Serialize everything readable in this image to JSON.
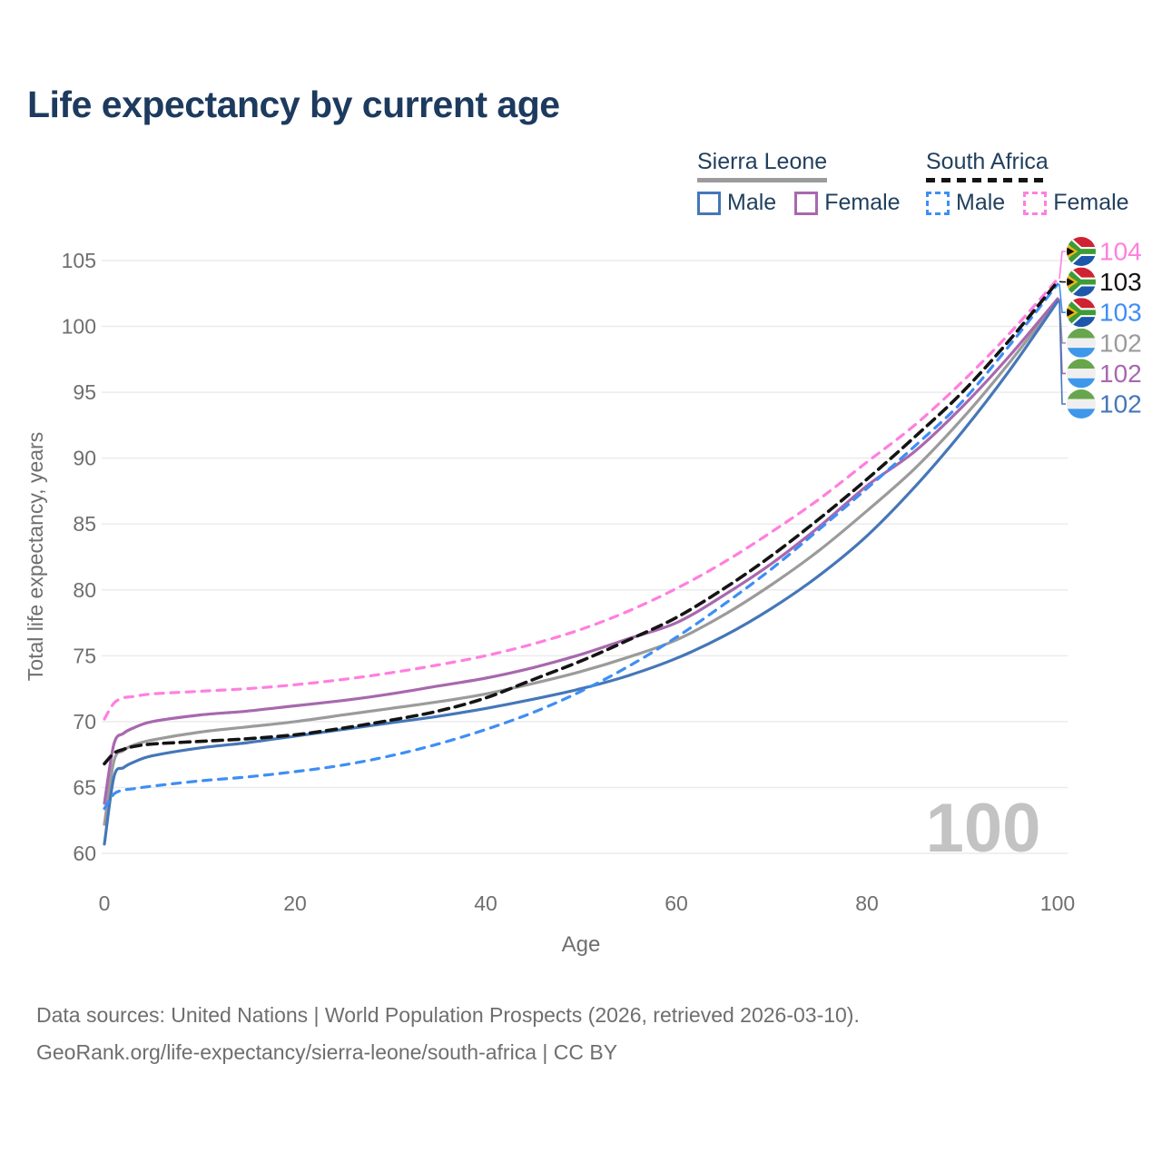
{
  "title": "Life expectancy by current age",
  "watermark_age": "100",
  "legend": {
    "groups": [
      {
        "label": "Sierra Leone",
        "style": "solid",
        "underline_color": "#9b9b9b",
        "items": [
          {
            "label": "Male",
            "color": "#4577b8"
          },
          {
            "label": "Female",
            "color": "#a868ae"
          }
        ]
      },
      {
        "label": "South Africa",
        "style": "dashed",
        "underline_color": "#141414",
        "items": [
          {
            "label": "Male",
            "color": "#3e8ef5"
          },
          {
            "label": "Female",
            "color": "#ff7fdf"
          }
        ]
      }
    ]
  },
  "footer": {
    "line1": "Data sources: United Nations | World Population Prospects (2026, retrieved 2026-03-10).",
    "line2": "GeoRank.org/life-expectancy/sierra-leone/south-africa | CC BY"
  },
  "chart_data": {
    "type": "line",
    "title": "Life expectancy by current age",
    "xlabel": "Age",
    "ylabel": "Total life expectancy, years",
    "xlim": [
      0,
      100
    ],
    "ylim": [
      60,
      105
    ],
    "xticks": [
      0,
      20,
      40,
      60,
      80,
      100
    ],
    "yticks": [
      60,
      65,
      70,
      75,
      80,
      85,
      90,
      95,
      100,
      105
    ],
    "grid": "horizontal",
    "gridline_color": "#ebebeb",
    "axis_text_color": "#6f6f6f",
    "watermark_color": "#c3c3c3",
    "x": [
      0,
      1,
      2,
      3,
      5,
      10,
      15,
      20,
      25,
      30,
      35,
      40,
      45,
      50,
      55,
      60,
      65,
      70,
      75,
      80,
      85,
      90,
      95,
      100
    ],
    "series": [
      {
        "name": "Sierra Leone Both",
        "country": "Sierra Leone",
        "sex": "Both",
        "color": "#9b9b9b",
        "dash": "solid",
        "flag": "sierra-leone",
        "end_label": "102",
        "label_row": 3,
        "values": [
          62.2,
          67.0,
          67.8,
          68.2,
          68.6,
          69.2,
          69.6,
          70.0,
          70.5,
          71.0,
          71.5,
          72.1,
          72.9,
          73.8,
          74.9,
          76.2,
          78.1,
          80.4,
          83.0,
          86.0,
          89.2,
          93.0,
          97.3,
          102.0
        ]
      },
      {
        "name": "Sierra Leone Female",
        "country": "Sierra Leone",
        "sex": "Female",
        "color": "#a868ae",
        "dash": "solid",
        "flag": "sierra-leone",
        "end_label": "102",
        "label_row": 4,
        "values": [
          63.8,
          68.3,
          69.1,
          69.5,
          70.0,
          70.5,
          70.8,
          71.2,
          71.6,
          72.1,
          72.7,
          73.3,
          74.1,
          75.1,
          76.3,
          77.5,
          79.6,
          82.0,
          84.8,
          87.9,
          90.5,
          93.9,
          97.8,
          102.1
        ]
      },
      {
        "name": "Sierra Leone Male",
        "country": "Sierra Leone",
        "sex": "Male",
        "color": "#4577b8",
        "dash": "solid",
        "flag": "sierra-leone",
        "end_label": "102",
        "label_row": 5,
        "values": [
          60.7,
          65.8,
          66.5,
          66.9,
          67.4,
          68.0,
          68.4,
          68.9,
          69.4,
          69.9,
          70.4,
          71.0,
          71.7,
          72.5,
          73.5,
          74.8,
          76.5,
          78.6,
          81.1,
          84.1,
          87.8,
          92.0,
          96.7,
          101.9
        ]
      },
      {
        "name": "South Africa Female",
        "country": "South Africa",
        "sex": "Female",
        "color": "#ff7fdf",
        "dash": "dashed",
        "flag": "south-africa",
        "end_label": "104",
        "label_row": 0,
        "values": [
          70.2,
          71.4,
          71.8,
          71.9,
          72.1,
          72.3,
          72.5,
          72.8,
          73.2,
          73.7,
          74.3,
          75.0,
          75.9,
          77.0,
          78.4,
          80.1,
          82.1,
          84.4,
          86.9,
          89.7,
          92.5,
          95.8,
          99.5,
          103.6
        ]
      },
      {
        "name": "South Africa Male",
        "country": "South Africa",
        "sex": "Male",
        "color": "#3e8ef5",
        "dash": "dashed",
        "flag": "south-africa",
        "end_label": "103",
        "label_row": 2,
        "values": [
          63.4,
          64.5,
          64.8,
          64.9,
          65.1,
          65.5,
          65.8,
          66.2,
          66.7,
          67.4,
          68.3,
          69.4,
          70.7,
          72.3,
          74.2,
          76.4,
          78.9,
          81.6,
          84.6,
          87.7,
          90.9,
          94.3,
          98.6,
          103.2
        ]
      },
      {
        "name": "South Africa Both",
        "country": "South Africa",
        "sex": "Both",
        "color": "#141414",
        "dash": "dashed",
        "flag": "south-africa",
        "end_label": "103",
        "label_row": 1,
        "values": [
          66.8,
          67.6,
          67.9,
          68.1,
          68.3,
          68.5,
          68.7,
          69.0,
          69.5,
          70.1,
          70.8,
          71.8,
          73.2,
          74.6,
          76.2,
          77.9,
          80.1,
          82.6,
          85.4,
          88.4,
          91.6,
          95.0,
          99.0,
          103.4
        ]
      }
    ]
  }
}
